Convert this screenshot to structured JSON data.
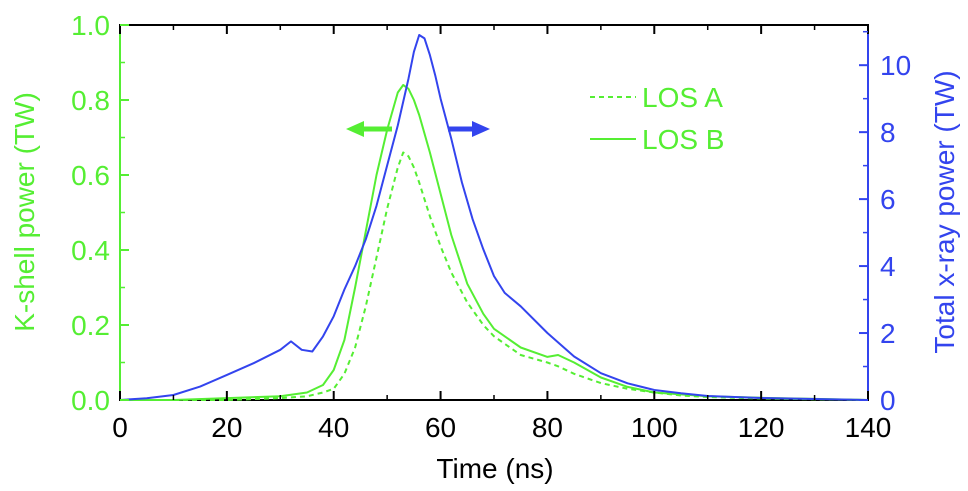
{
  "chart_data": {
    "type": "line",
    "xlabel": "Time (ns)",
    "ylabel_left": "K-shell power (TW)",
    "ylabel_right": "Total x-ray power (TW)",
    "xlim": [
      0,
      140
    ],
    "ylim_left": [
      0,
      1.0
    ],
    "ylim_right": [
      0,
      11.2
    ],
    "x_ticks": [
      "0",
      "20",
      "40",
      "60",
      "80",
      "100",
      "120",
      "140"
    ],
    "y_left_ticks": [
      "0.0",
      "0.2",
      "0.4",
      "0.6",
      "0.8",
      "1.0"
    ],
    "y_right_ticks": [
      "0",
      "2",
      "4",
      "6",
      "8",
      "10"
    ],
    "grid": false,
    "legend_position": "top-right",
    "colors": {
      "k_shell": "#55ee33",
      "total": "#3344ee"
    },
    "series": [
      {
        "name": "LOS A",
        "axis": "left",
        "style": "dashed",
        "color": "#55ee33",
        "x": [
          0,
          10,
          20,
          30,
          35,
          38,
          40,
          42,
          44,
          46,
          48,
          50,
          52,
          53,
          54,
          55,
          56,
          58,
          60,
          62,
          65,
          68,
          70,
          75,
          80,
          82,
          85,
          90,
          95,
          100,
          105,
          110,
          120,
          130,
          140
        ],
        "y": [
          0.0,
          0.0,
          0.0,
          0.005,
          0.01,
          0.02,
          0.03,
          0.07,
          0.14,
          0.25,
          0.38,
          0.51,
          0.62,
          0.66,
          0.65,
          0.62,
          0.58,
          0.49,
          0.41,
          0.34,
          0.26,
          0.2,
          0.17,
          0.12,
          0.1,
          0.09,
          0.07,
          0.045,
          0.03,
          0.02,
          0.012,
          0.008,
          0.004,
          0.002,
          0.0
        ]
      },
      {
        "name": "LOS B",
        "axis": "left",
        "style": "solid",
        "color": "#55ee33",
        "x": [
          0,
          10,
          20,
          30,
          35,
          38,
          40,
          42,
          44,
          46,
          48,
          50,
          52,
          53,
          54,
          55,
          56,
          58,
          60,
          62,
          65,
          68,
          70,
          75,
          80,
          82,
          85,
          90,
          95,
          100,
          105,
          110,
          120,
          130,
          140
        ],
        "y": [
          0.0,
          0.0,
          0.005,
          0.01,
          0.02,
          0.04,
          0.08,
          0.16,
          0.3,
          0.45,
          0.6,
          0.72,
          0.82,
          0.84,
          0.83,
          0.8,
          0.76,
          0.66,
          0.55,
          0.44,
          0.31,
          0.23,
          0.19,
          0.14,
          0.115,
          0.12,
          0.1,
          0.06,
          0.035,
          0.02,
          0.015,
          0.01,
          0.006,
          0.003,
          0.0
        ]
      },
      {
        "name": "",
        "axis": "right",
        "style": "solid",
        "color": "#3344ee",
        "x": [
          0,
          5,
          10,
          15,
          20,
          25,
          30,
          32,
          34,
          36,
          38,
          40,
          42,
          44,
          46,
          48,
          50,
          52,
          54,
          55,
          56,
          57,
          58,
          59,
          60,
          62,
          64,
          66,
          68,
          70,
          72,
          75,
          80,
          85,
          90,
          95,
          100,
          105,
          110,
          120,
          130,
          140
        ],
        "y": [
          0.0,
          0.05,
          0.15,
          0.4,
          0.75,
          1.1,
          1.5,
          1.75,
          1.5,
          1.45,
          1.9,
          2.5,
          3.3,
          4.0,
          4.8,
          5.8,
          7.0,
          8.2,
          9.6,
          10.4,
          10.9,
          10.8,
          10.3,
          9.7,
          9.0,
          7.8,
          6.5,
          5.4,
          4.5,
          3.7,
          3.2,
          2.8,
          2.0,
          1.3,
          0.8,
          0.5,
          0.3,
          0.2,
          0.12,
          0.06,
          0.03,
          0.0
        ]
      }
    ],
    "legend": [
      {
        "label": "LOS A",
        "style": "dashed"
      },
      {
        "label": "LOS B",
        "style": "solid"
      }
    ],
    "annotations": [
      {
        "kind": "arrow",
        "direction": "left",
        "axis": "left",
        "color": "#55ee33"
      },
      {
        "kind": "arrow",
        "direction": "right",
        "axis": "right",
        "color": "#3344ee"
      }
    ]
  }
}
